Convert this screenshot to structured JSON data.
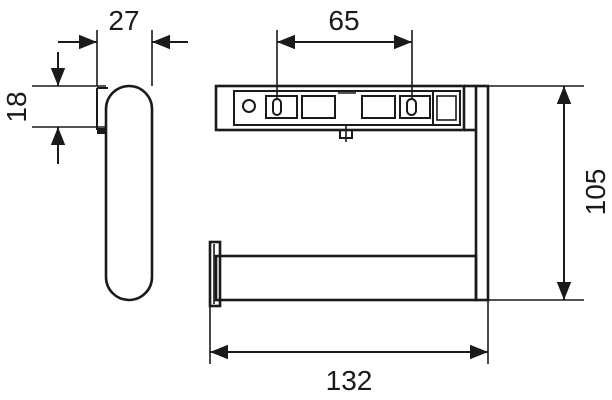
{
  "dimensions": {
    "side_width": "27",
    "side_offset": "18",
    "hole_spacing": "65",
    "total_width": "132",
    "total_height": "105"
  },
  "colors": {
    "line": "#1a1a1a",
    "background": "#ffffff"
  }
}
